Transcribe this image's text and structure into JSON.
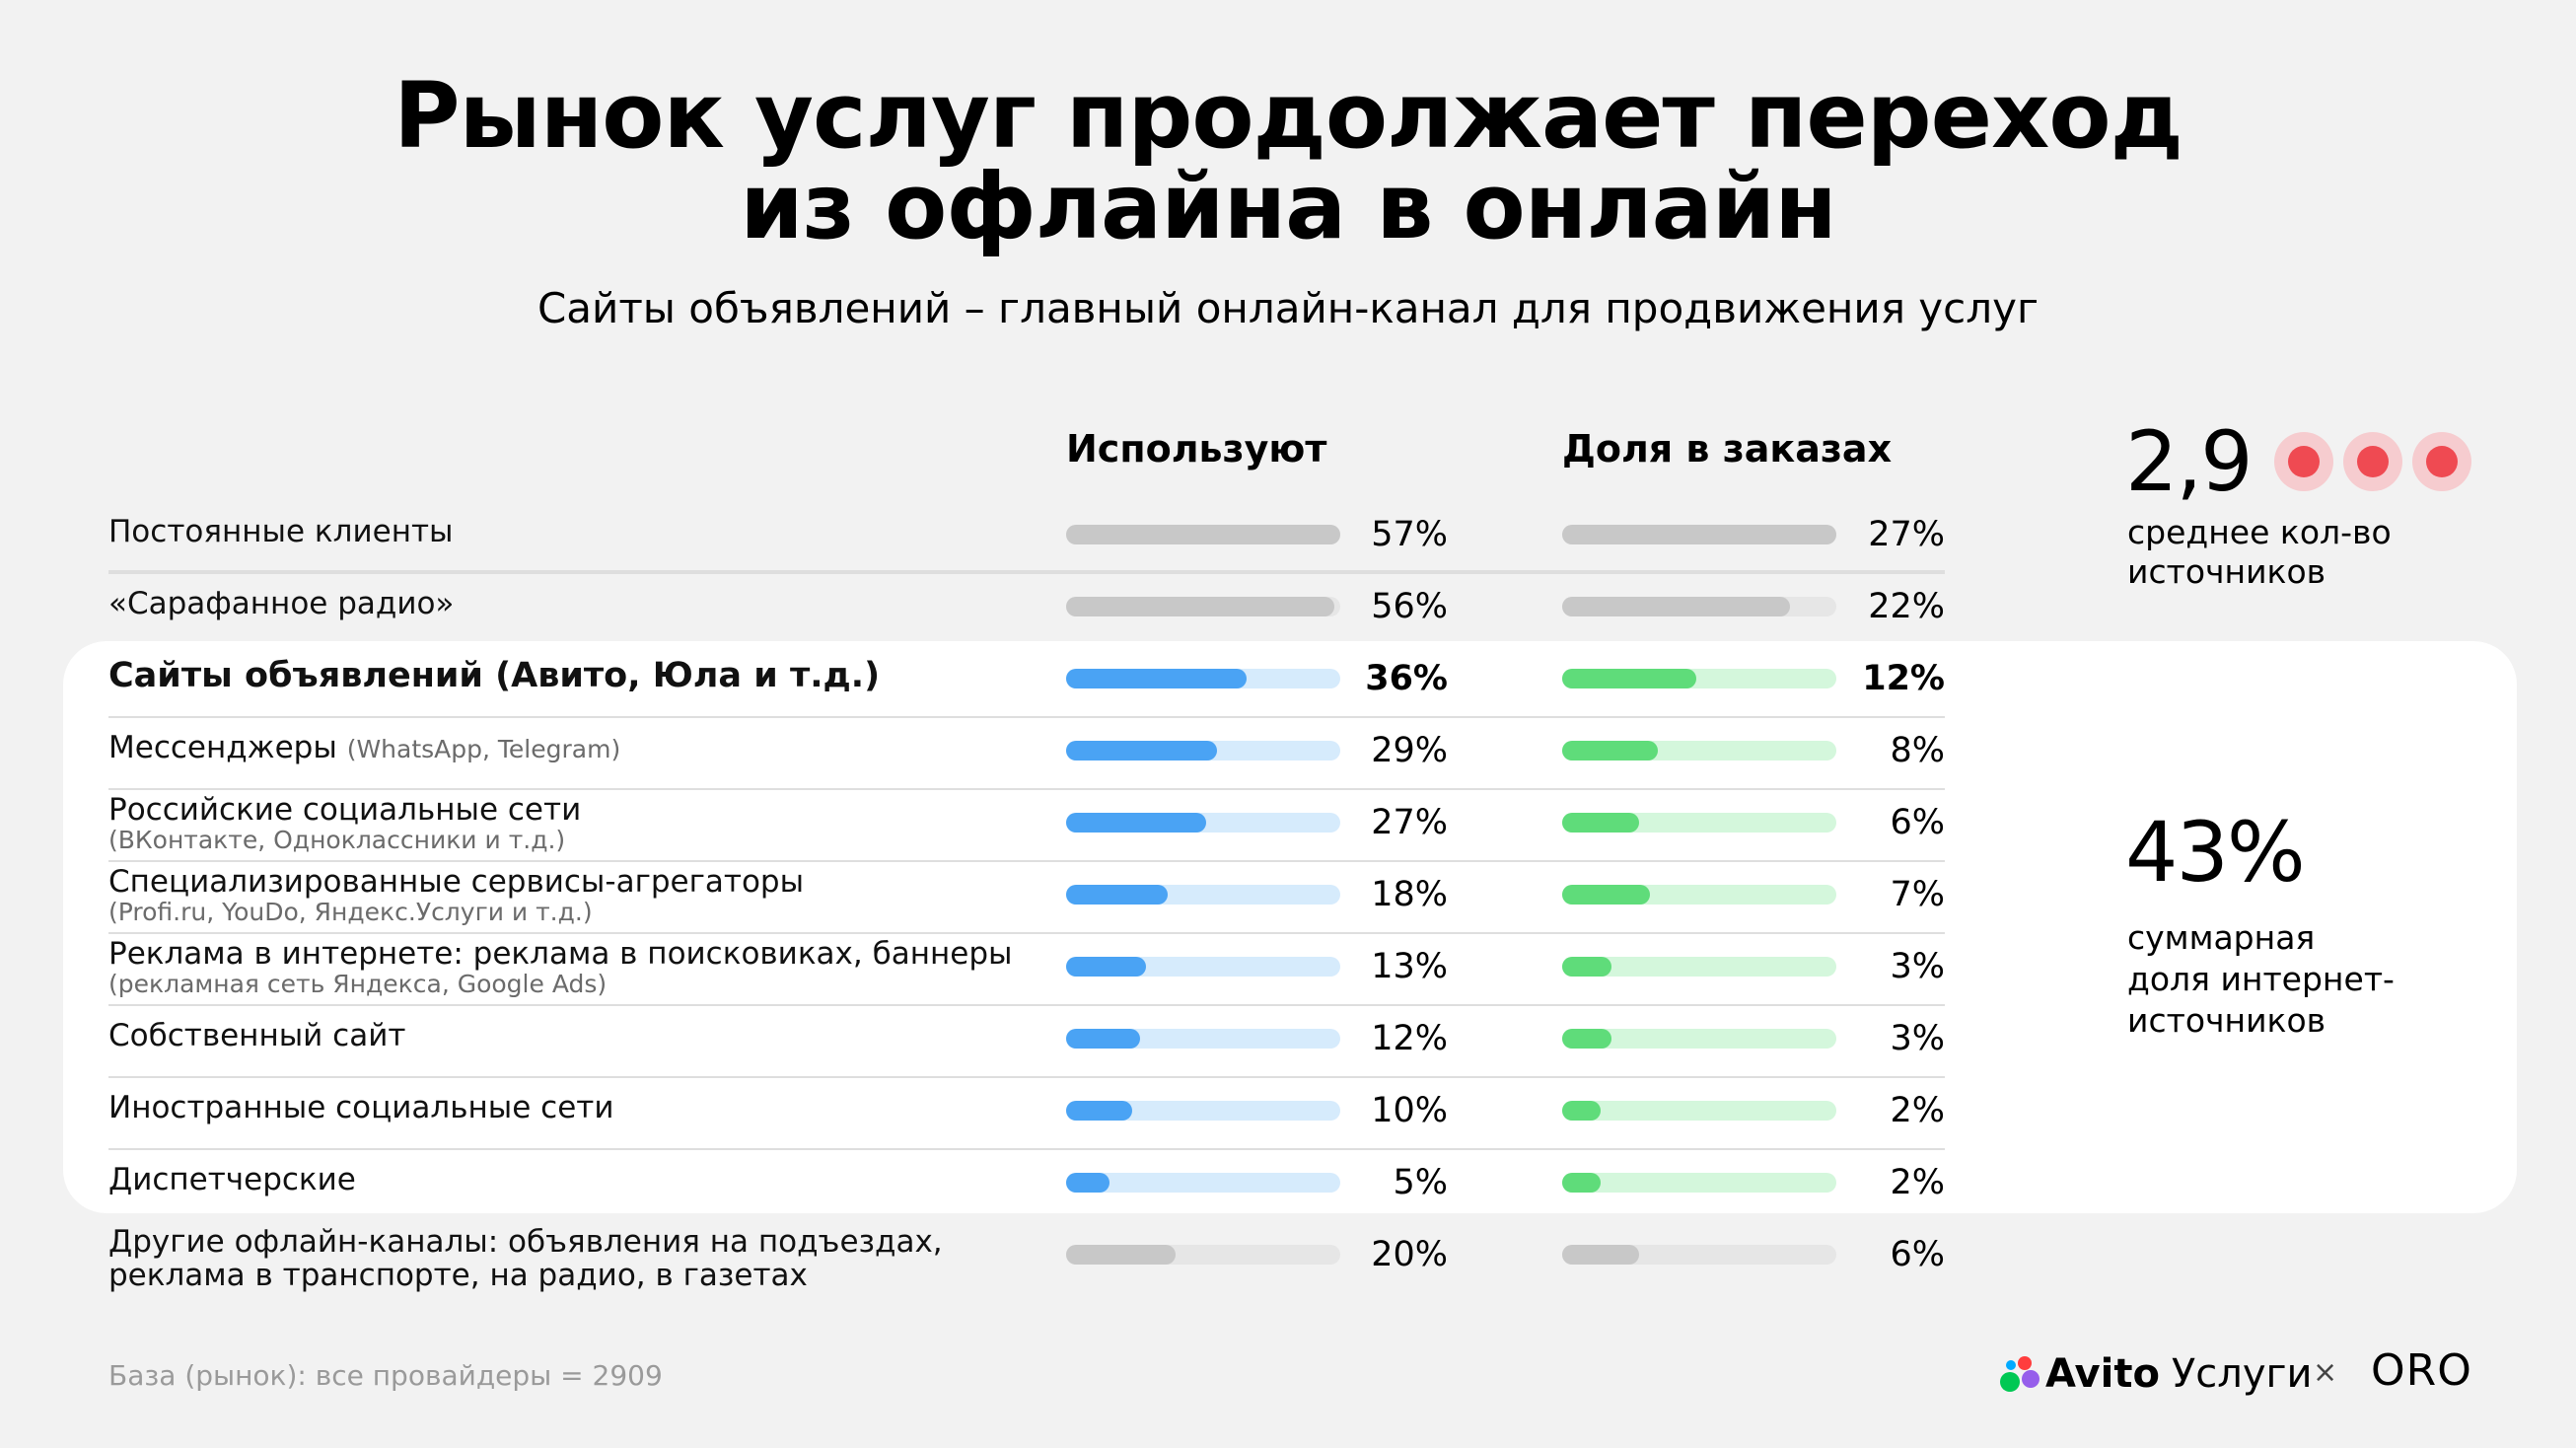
{
  "title_line1": "Рынок услуг продолжает переход",
  "title_line2": "из офлайна в онлайн",
  "subtitle": "Сайты объявлений – главный онлайн-канал для продвижения услуг",
  "colors": {
    "grey_fill": "#c8c8c8",
    "grey_track": "#e6e6e6",
    "blue_fill": "#4aa3f4",
    "blue_track": "#d6ebfc",
    "green_fill": "#5fdc7a",
    "green_track": "#d4f7dc",
    "dot_red": "#ef4a52"
  },
  "chart_data": {
    "type": "bar",
    "columns": [
      "Используют",
      "Доля в заказах"
    ],
    "categories": [
      "Постоянные клиенты",
      "«Сарафанное радио»",
      "Сайты объявлений (Авито, Юла и т.д.)",
      "Мессенджеры",
      "Российские социальные сети",
      "Специализированные сервисы-агрегаторы",
      "Реклама в интернете: реклама в поисковиках, баннеры",
      "Собственный сайт",
      "Иностранные социальные сети",
      "Диспетчерские",
      "Другие офлайн-каналы: объявления на подъездах, реклама в транспорте, на радио, в газетах"
    ],
    "series": [
      {
        "name": "Используют",
        "values": [
          57,
          56,
          36,
          29,
          27,
          18,
          13,
          12,
          10,
          5,
          20
        ]
      },
      {
        "name": "Доля в заказах",
        "values": [
          27,
          22,
          12,
          8,
          6,
          7,
          3,
          3,
          2,
          2,
          6
        ]
      }
    ],
    "rows": [
      {
        "label": "Постоянные клиенты",
        "note": "",
        "use": 57,
        "use_label": "57%",
        "use_fill": 1.0,
        "share": 27,
        "share_label": "27%",
        "share_fill": 1.0,
        "group": "offline"
      },
      {
        "label": "«Сарафанное радио»",
        "note": "",
        "use": 56,
        "use_label": "56%",
        "use_fill": 0.98,
        "share": 22,
        "share_label": "22%",
        "share_fill": 0.83,
        "group": "offline"
      },
      {
        "label": "Сайты объявлений (Авито, Юла и т.д.)",
        "note": "",
        "use": 36,
        "use_label": "36%",
        "use_fill": 0.66,
        "share": 12,
        "share_label": "12%",
        "share_fill": 0.49,
        "group": "online",
        "bold": true
      },
      {
        "label": "Мессенджеры",
        "note": "(WhatsApp, Telegram)",
        "use": 29,
        "use_label": "29%",
        "use_fill": 0.55,
        "share": 8,
        "share_label": "8%",
        "share_fill": 0.35,
        "group": "online",
        "inline_note": true
      },
      {
        "label": "Российские социальные сети",
        "note": "(ВКонтакте, Одноклассники и т.д.)",
        "use": 27,
        "use_label": "27%",
        "use_fill": 0.51,
        "share": 6,
        "share_label": "6%",
        "share_fill": 0.28,
        "group": "online"
      },
      {
        "label": "Специализированные сервисы-агрегаторы",
        "note": "(Profi.ru, YouDo, Яндекс.Услуги и т.д.)",
        "use": 18,
        "use_label": "18%",
        "use_fill": 0.37,
        "share": 7,
        "share_label": "7%",
        "share_fill": 0.32,
        "group": "online"
      },
      {
        "label": "Реклама в интернете: реклама в поисковиках, баннеры",
        "note": "(рекламная сеть Яндекса, Google Ads)",
        "use": 13,
        "use_label": "13%",
        "use_fill": 0.29,
        "share": 3,
        "share_label": "3%",
        "share_fill": 0.18,
        "group": "online"
      },
      {
        "label": "Собственный сайт",
        "note": "",
        "use": 12,
        "use_label": "12%",
        "use_fill": 0.27,
        "share": 3,
        "share_label": "3%",
        "share_fill": 0.18,
        "group": "online"
      },
      {
        "label": "Иностранные социальные сети",
        "note": "",
        "use": 10,
        "use_label": "10%",
        "use_fill": 0.24,
        "share": 2,
        "share_label": "2%",
        "share_fill": 0.14,
        "group": "online"
      },
      {
        "label": "Диспетчерские",
        "note": "",
        "use": 5,
        "use_label": "5%",
        "use_fill": 0.16,
        "share": 2,
        "share_label": "2%",
        "share_fill": 0.14,
        "group": "online"
      },
      {
        "label": "Другие офлайн-каналы: объявления на подъездах,",
        "label2": "реклама в транспорте, на радио, в газетах",
        "note": "",
        "use": 20,
        "use_label": "20%",
        "use_fill": 0.4,
        "share": 6,
        "share_label": "6%",
        "share_fill": 0.28,
        "group": "offline"
      }
    ]
  },
  "avg_sources": {
    "value": "2,9",
    "caption_line1": "среднее кол-во",
    "caption_line2": "источников",
    "dot_count": 3
  },
  "internet_share": {
    "value": "43%",
    "caption_line1": "суммарная",
    "caption_line2": "доля интернет-",
    "caption_line3": "источников"
  },
  "footnote": "База (рынок): все провайдеры = 2909",
  "brand": {
    "name": "Avito",
    "suffix": "Услуги",
    "cross": "×",
    "partner": "ORO"
  }
}
